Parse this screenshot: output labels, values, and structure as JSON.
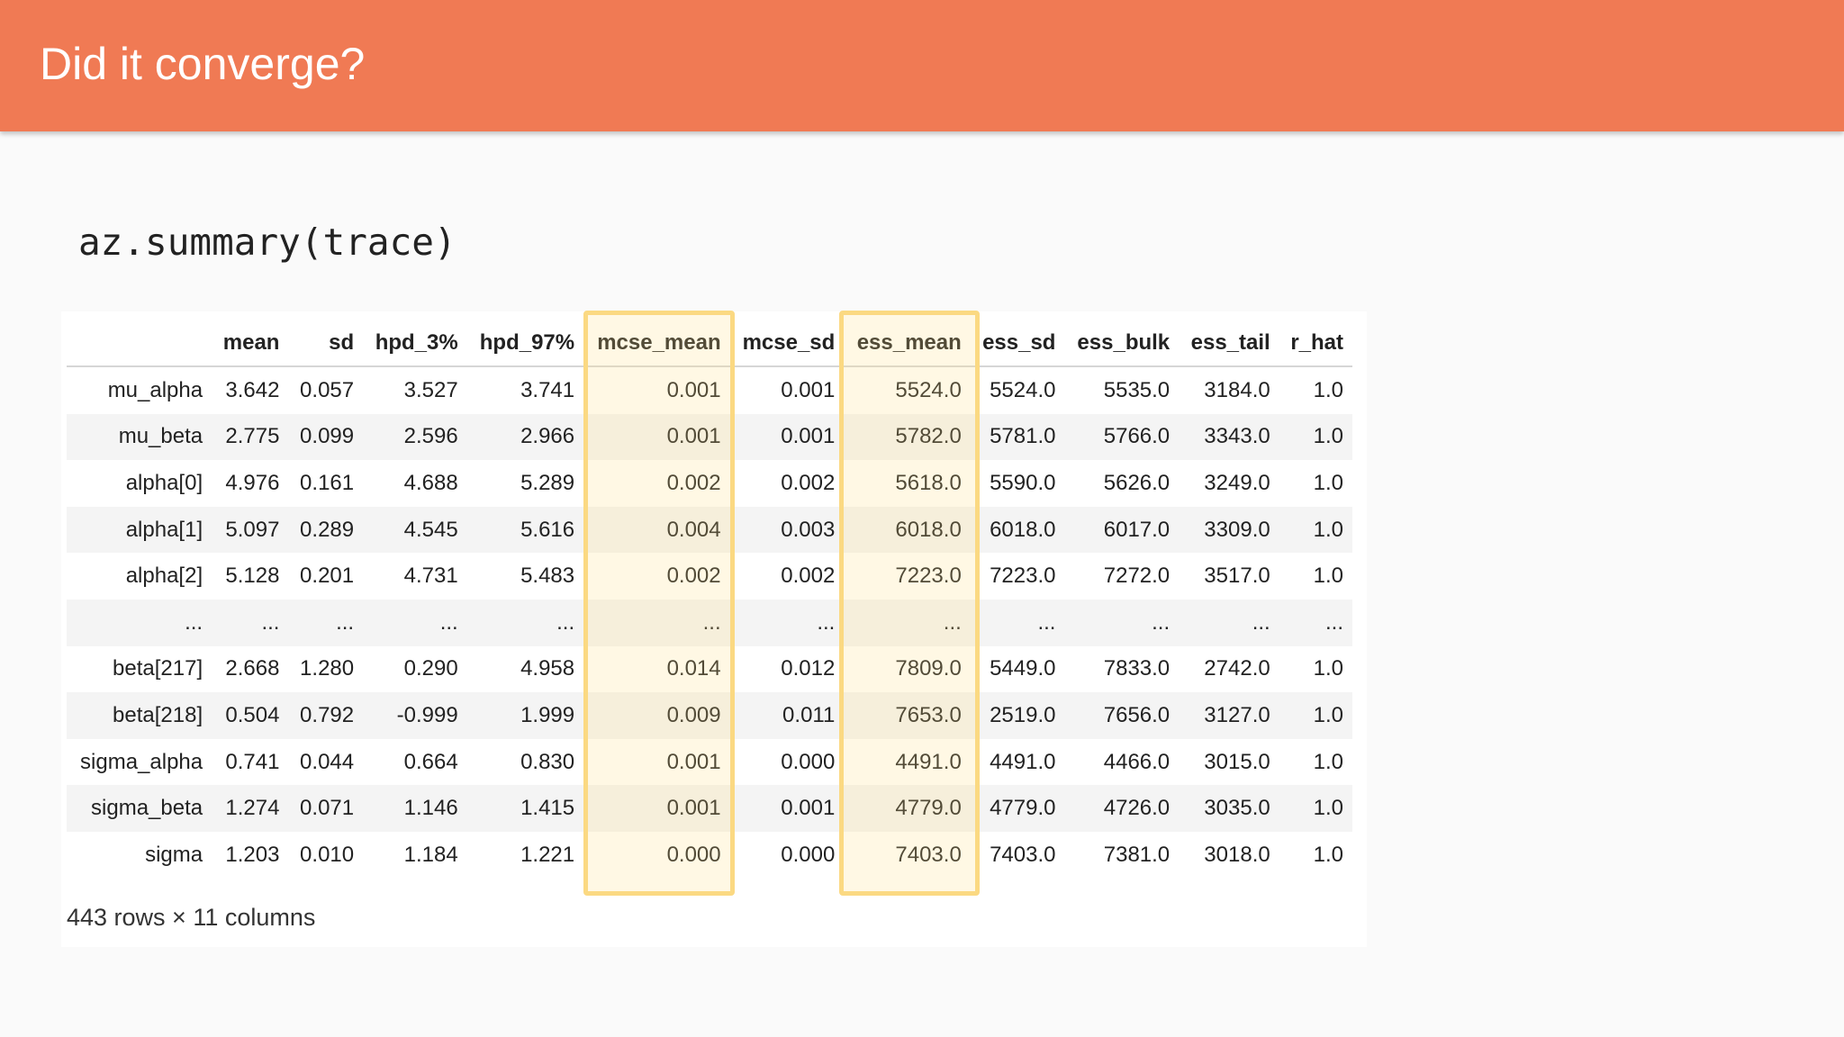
{
  "slide": {
    "title": "Did it converge?"
  },
  "code": {
    "text": "az.summary(trace)"
  },
  "table": {
    "columns": [
      "",
      "mean",
      "sd",
      "hpd_3%",
      "hpd_97%",
      "mcse_mean",
      "mcse_sd",
      "ess_mean",
      "ess_sd",
      "ess_bulk",
      "ess_tail",
      "r_hat"
    ],
    "rows": [
      [
        "mu_alpha",
        "3.642",
        "0.057",
        "3.527",
        "3.741",
        "0.001",
        "0.001",
        "5524.0",
        "5524.0",
        "5535.0",
        "3184.0",
        "1.0"
      ],
      [
        "mu_beta",
        "2.775",
        "0.099",
        "2.596",
        "2.966",
        "0.001",
        "0.001",
        "5782.0",
        "5781.0",
        "5766.0",
        "3343.0",
        "1.0"
      ],
      [
        "alpha[0]",
        "4.976",
        "0.161",
        "4.688",
        "5.289",
        "0.002",
        "0.002",
        "5618.0",
        "5590.0",
        "5626.0",
        "3249.0",
        "1.0"
      ],
      [
        "alpha[1]",
        "5.097",
        "0.289",
        "4.545",
        "5.616",
        "0.004",
        "0.003",
        "6018.0",
        "6018.0",
        "6017.0",
        "3309.0",
        "1.0"
      ],
      [
        "alpha[2]",
        "5.128",
        "0.201",
        "4.731",
        "5.483",
        "0.002",
        "0.002",
        "7223.0",
        "7223.0",
        "7272.0",
        "3517.0",
        "1.0"
      ],
      [
        "...",
        "...",
        "...",
        "...",
        "...",
        "...",
        "...",
        "...",
        "...",
        "...",
        "...",
        "..."
      ],
      [
        "beta[217]",
        "2.668",
        "1.280",
        "0.290",
        "4.958",
        "0.014",
        "0.012",
        "7809.0",
        "5449.0",
        "7833.0",
        "2742.0",
        "1.0"
      ],
      [
        "beta[218]",
        "0.504",
        "0.792",
        "-0.999",
        "1.999",
        "0.009",
        "0.011",
        "7653.0",
        "2519.0",
        "7656.0",
        "3127.0",
        "1.0"
      ],
      [
        "sigma_alpha",
        "0.741",
        "0.044",
        "0.664",
        "0.830",
        "0.001",
        "0.000",
        "4491.0",
        "4491.0",
        "4466.0",
        "3015.0",
        "1.0"
      ],
      [
        "sigma_beta",
        "1.274",
        "0.071",
        "1.146",
        "1.415",
        "0.001",
        "0.001",
        "4779.0",
        "4779.0",
        "4726.0",
        "3035.0",
        "1.0"
      ],
      [
        "sigma",
        "1.203",
        "0.010",
        "1.184",
        "1.221",
        "0.000",
        "0.000",
        "7403.0",
        "7403.0",
        "7381.0",
        "3018.0",
        "1.0"
      ]
    ],
    "highlighted_columns": [
      "mcse_mean",
      "ess_mean"
    ],
    "highlight_color": "#fbd982",
    "footer": "443 rows × 11 columns"
  },
  "colors": {
    "header": "#f07a54",
    "title_text": "#ffffff"
  }
}
